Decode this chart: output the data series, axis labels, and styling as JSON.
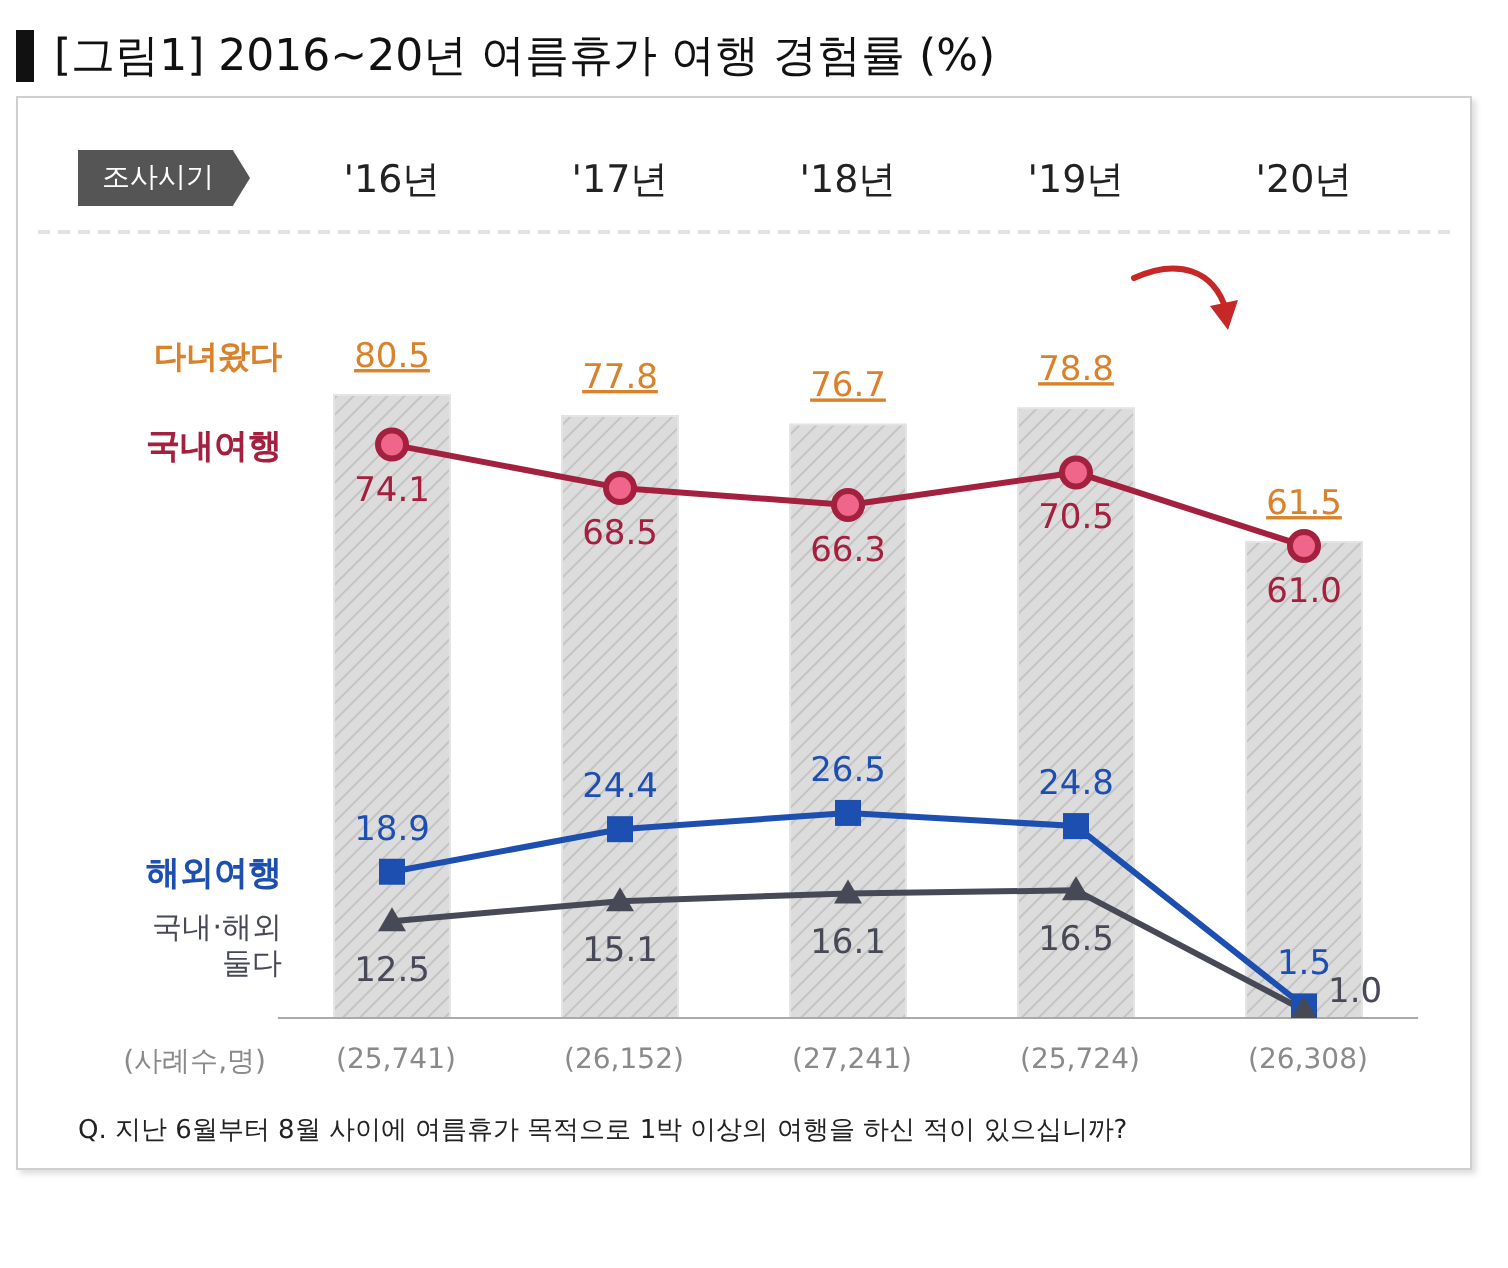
{
  "chart_data": {
    "type": "bar",
    "title": "[그림1] 2016~20년 여름휴가 여행 경험률 (%)",
    "xlabel": "조사시기",
    "categories": [
      "'16년",
      "'17년",
      "'18년",
      "'19년",
      "'20년"
    ],
    "series": [
      {
        "name": "다녀왔다",
        "color": "#dcdcdc",
        "values": [
          80.5,
          77.8,
          76.7,
          78.8,
          61.5
        ]
      },
      {
        "name": "국내여행",
        "type": "line",
        "color": "#a3203e",
        "marker": "circle",
        "values": [
          74.1,
          68.5,
          66.3,
          70.5,
          61.0
        ],
        "value_labels": [
          "74.1",
          "68.5",
          "66.3",
          "70.5",
          "61.0"
        ]
      },
      {
        "name": "해외여행",
        "type": "line",
        "color": "#1d4fb0",
        "marker": "square",
        "values": [
          18.9,
          24.4,
          26.5,
          24.8,
          1.5
        ]
      },
      {
        "name": "국내·해외 둘다",
        "type": "line",
        "color": "#474957",
        "marker": "triangle",
        "values": [
          12.5,
          15.1,
          16.1,
          16.5,
          1.0
        ],
        "value_labels": [
          "12.5",
          "15.1",
          "16.1",
          "16.5",
          "1.0"
        ]
      }
    ],
    "data_labels": true,
    "legend": false,
    "grid": false,
    "annotations": [
      "(사례수,명)",
      "(25,741)",
      "(26,152)",
      "(27,241)",
      "(25,724)",
      "(26,308)",
      "Q. 지난 6월부터 8월 사이에 여름휴가 목적으로 1박 이상의 여행을 하신 적이 있으십니까?"
    ]
  }
}
